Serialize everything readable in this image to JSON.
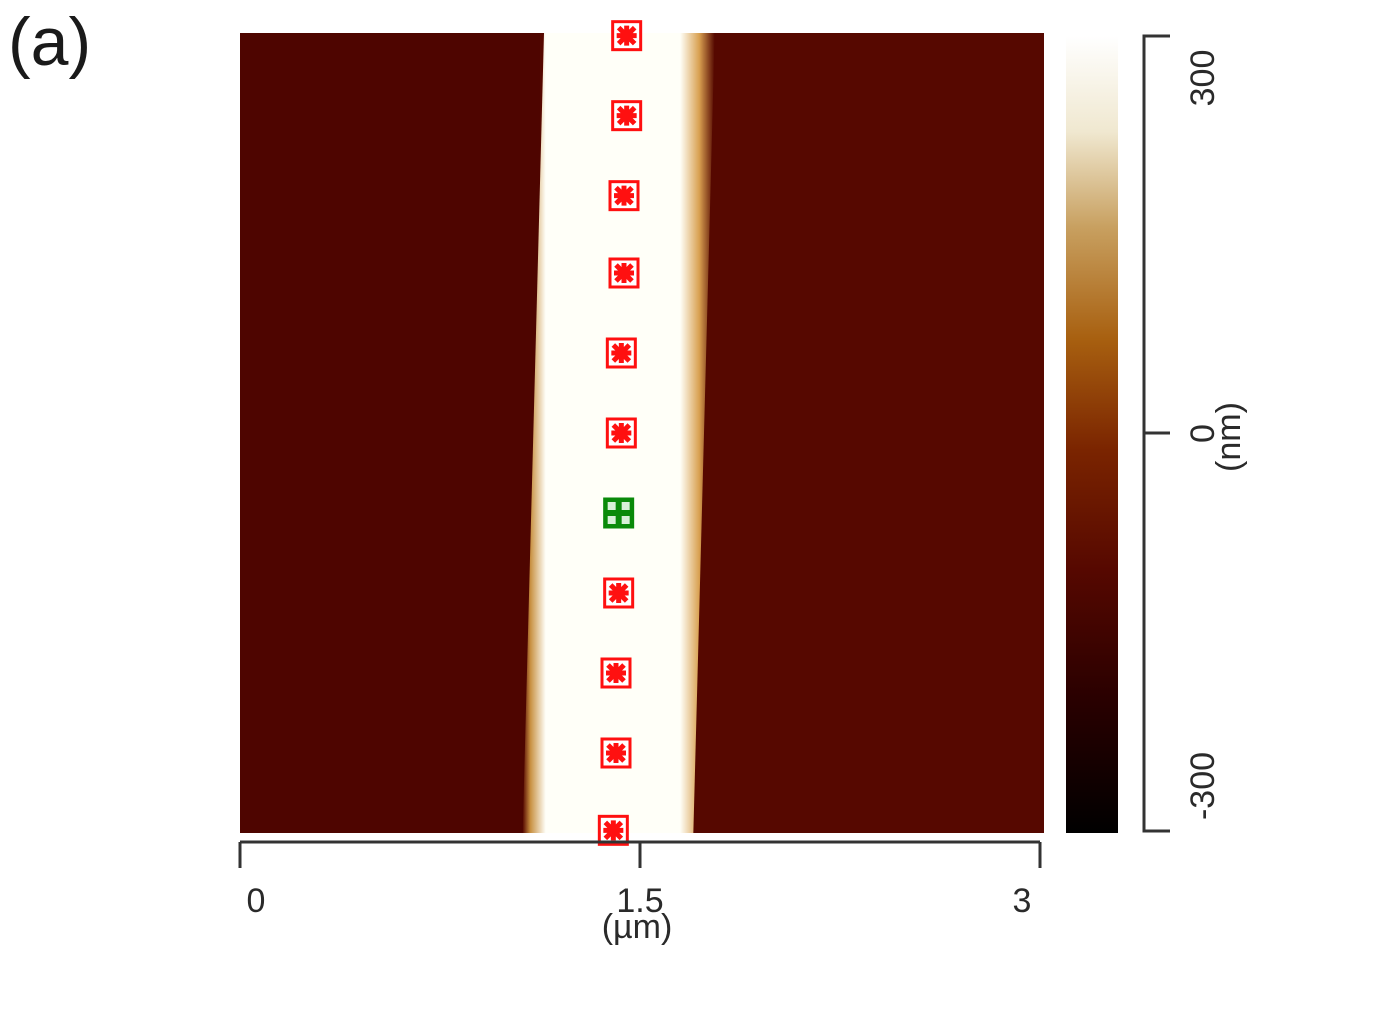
{
  "panel_label": "(a)",
  "chart_data": {
    "type": "heatmap",
    "title": "",
    "xlabel": "(µm)",
    "x_ticks": [
      "0",
      "1.5",
      "3"
    ],
    "x_tick_values": [
      0,
      1.5,
      3
    ],
    "xlim": [
      0,
      3
    ],
    "ylim": [
      0,
      3
    ],
    "colorbar": {
      "label": "(nm)",
      "ticks": [
        "300",
        "0",
        "-300"
      ],
      "tick_values": [
        300,
        0,
        -300
      ],
      "range": [
        -300,
        300
      ],
      "colors": [
        "#000000",
        "#3a0000",
        "#5a0a00",
        "#8a3a00",
        "#b08030",
        "#e8d8b0",
        "#ffffff"
      ]
    },
    "background_color": "#560800",
    "stripe": {
      "color": "#fffff8",
      "edge_color": "#c89040",
      "left_edge_top_um": 1.14,
      "right_edge_top_um": 1.78,
      "left_edge_bottom_um": 1.06,
      "right_edge_bottom_um": 1.7
    },
    "markers": [
      {
        "x_um": 1.45,
        "y_um": 2.99,
        "color": "red",
        "symbol": "asterisk-square"
      },
      {
        "x_um": 1.45,
        "y_um": 2.69,
        "color": "red",
        "symbol": "asterisk-square"
      },
      {
        "x_um": 1.44,
        "y_um": 2.39,
        "color": "red",
        "symbol": "asterisk-square"
      },
      {
        "x_um": 1.44,
        "y_um": 2.1,
        "color": "red",
        "symbol": "asterisk-square"
      },
      {
        "x_um": 1.43,
        "y_um": 1.8,
        "color": "red",
        "symbol": "asterisk-square"
      },
      {
        "x_um": 1.43,
        "y_um": 1.5,
        "color": "red",
        "symbol": "asterisk-square"
      },
      {
        "x_um": 1.42,
        "y_um": 1.2,
        "color": "green",
        "symbol": "plus-square"
      },
      {
        "x_um": 1.42,
        "y_um": 0.9,
        "color": "red",
        "symbol": "asterisk-square"
      },
      {
        "x_um": 1.41,
        "y_um": 0.6,
        "color": "red",
        "symbol": "asterisk-square"
      },
      {
        "x_um": 1.41,
        "y_um": 0.3,
        "color": "red",
        "symbol": "asterisk-square"
      },
      {
        "x_um": 1.4,
        "y_um": 0.01,
        "color": "red",
        "symbol": "asterisk-square"
      }
    ]
  }
}
